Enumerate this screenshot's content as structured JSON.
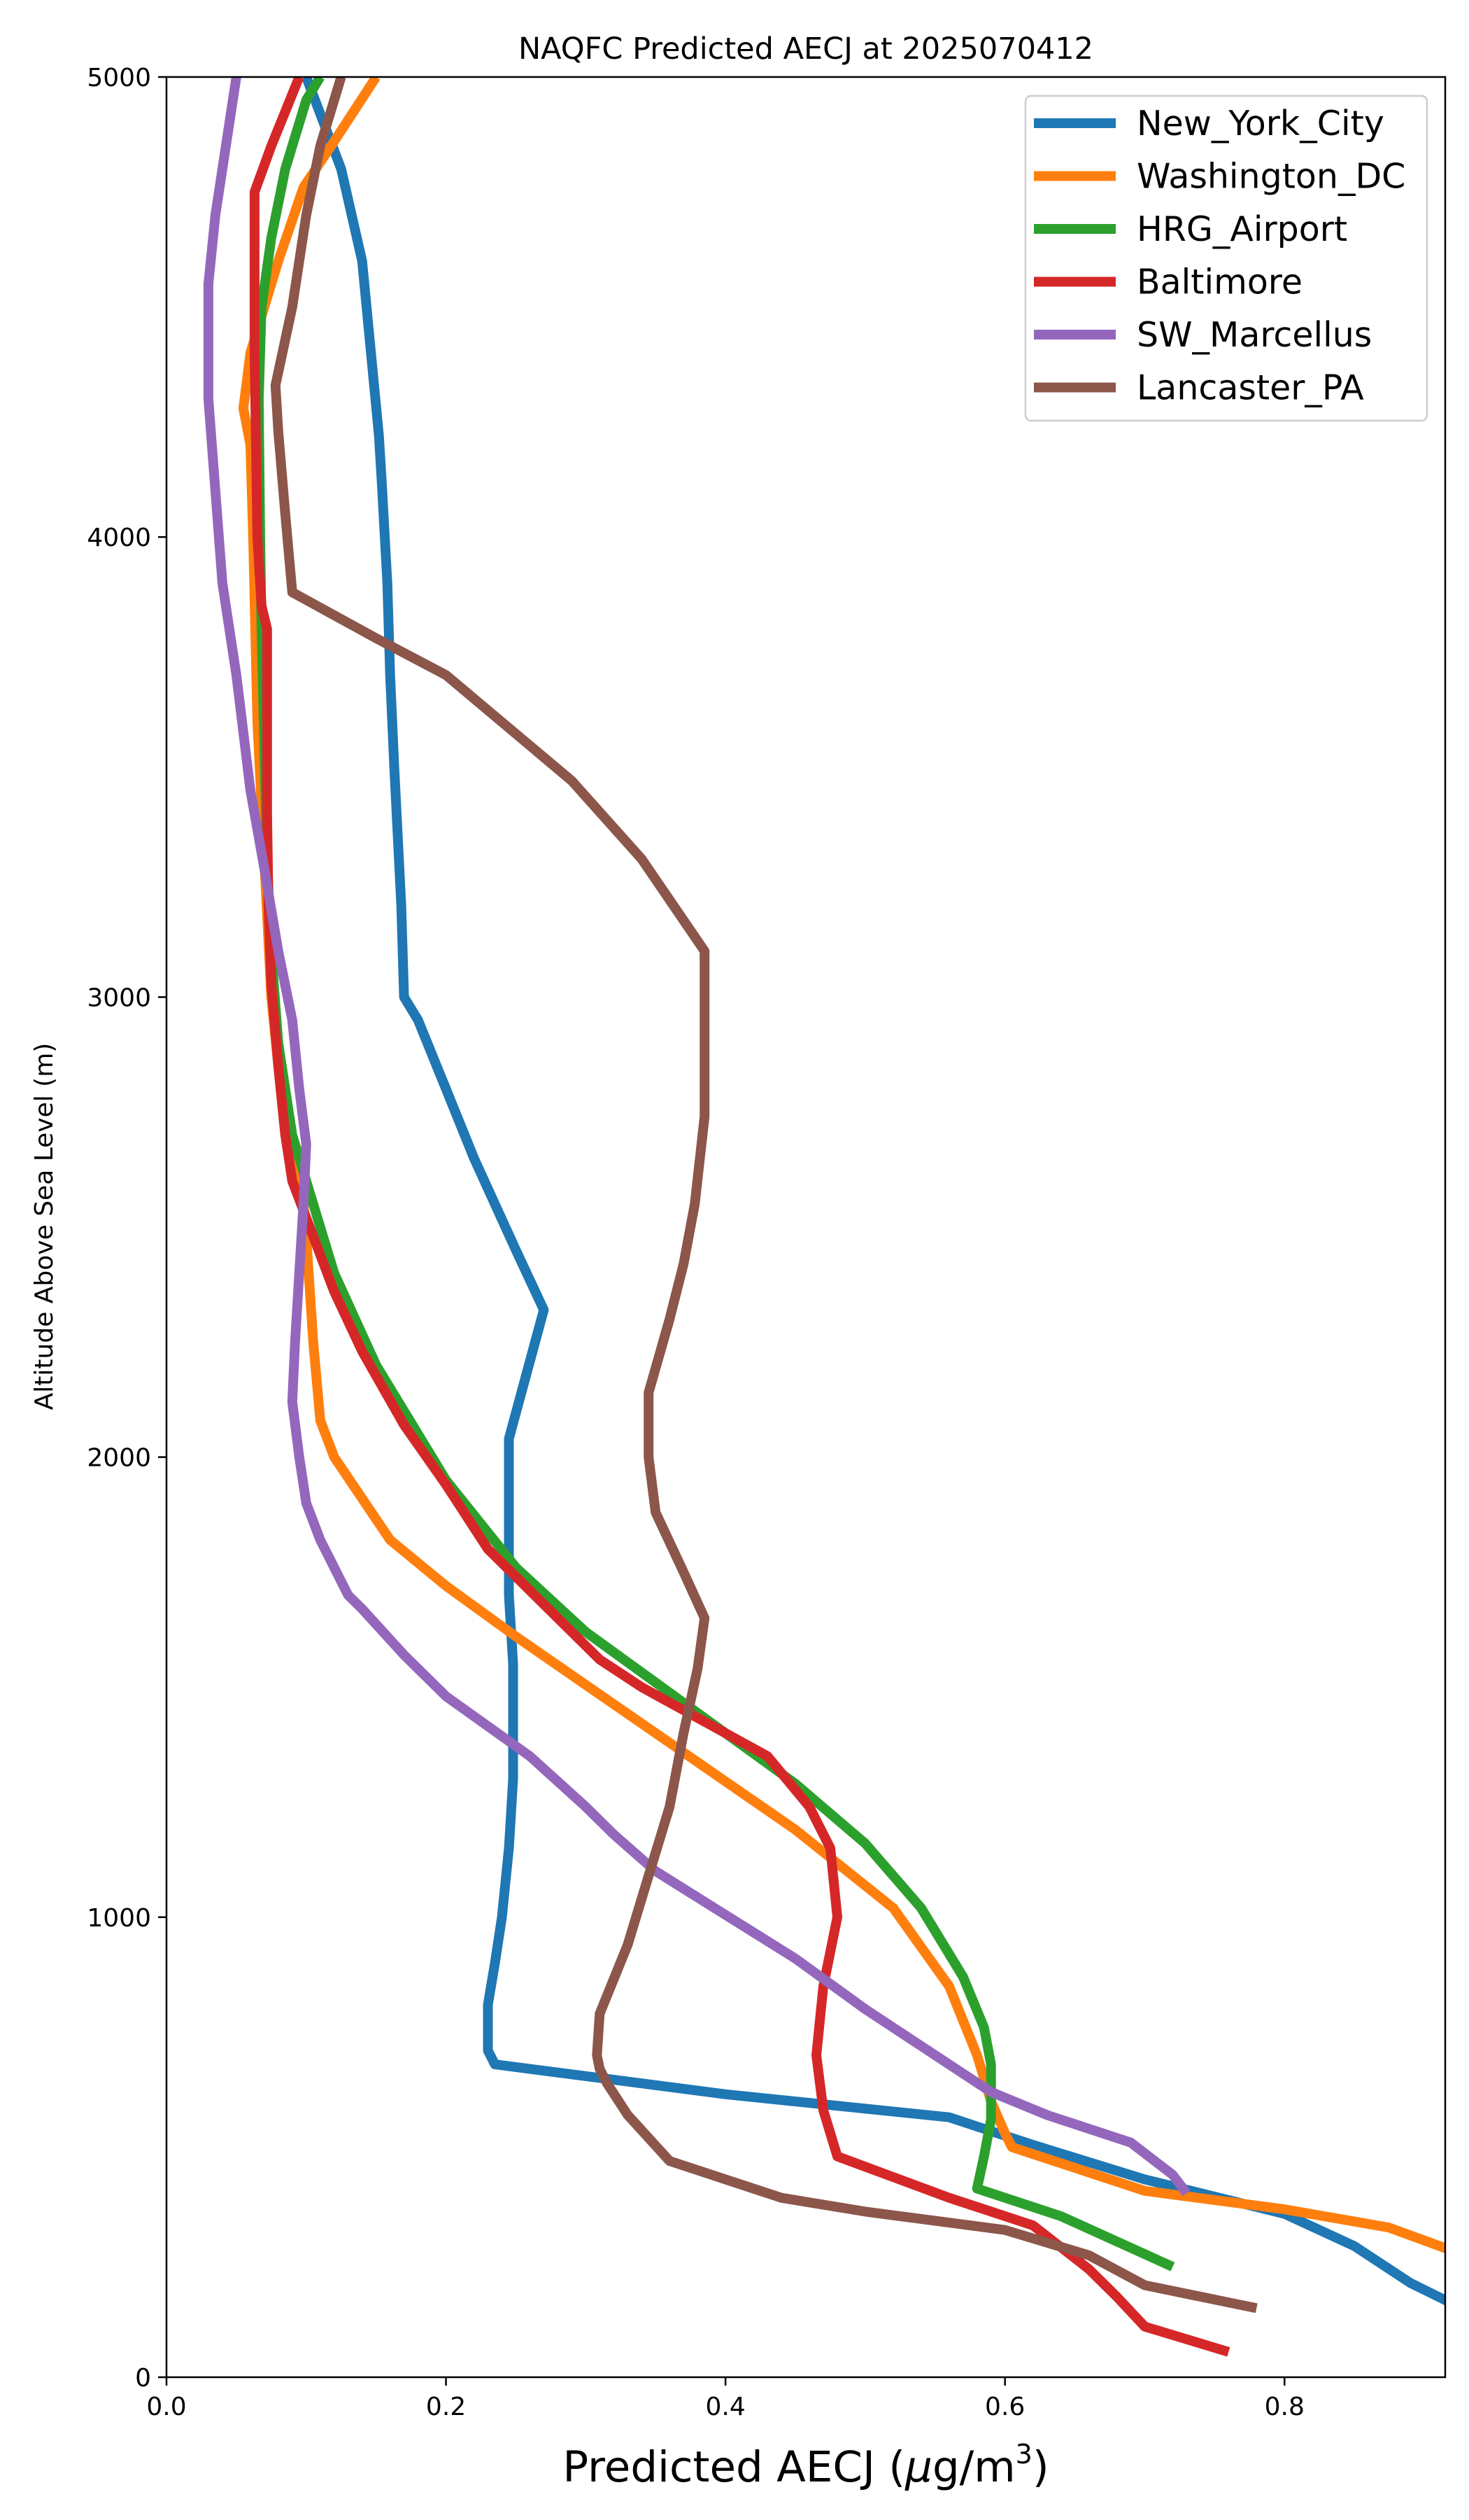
{
  "chart_data": {
    "type": "line",
    "title": "NAQFC Predicted AECJ at 2025070412",
    "xlabel_main": "Predicted AECJ (",
    "xlabel_mu": "μ",
    "xlabel_unit": "g/m",
    "xlabel_sup": "3",
    "xlabel_close": ")",
    "ylabel": "Altitude Above Sea Level (m)",
    "xlim": [
      0.0,
      0.915
    ],
    "ylim": [
      0,
      5000
    ],
    "xticks": [
      0.0,
      0.2,
      0.4,
      0.6,
      0.8
    ],
    "xtick_labels": [
      "0.0",
      "0.2",
      "0.4",
      "0.6",
      "0.8"
    ],
    "yticks": [
      0,
      1000,
      2000,
      3000,
      4000,
      5000
    ],
    "ytick_labels": [
      "0",
      "1000",
      "2000",
      "3000",
      "4000",
      "5000"
    ],
    "grid": false,
    "legend_position": "upper right",
    "series": [
      {
        "name": "New_York_City",
        "color": "#1f77b4",
        "points": [
          [
            0.92,
            160
          ],
          [
            0.89,
            205
          ],
          [
            0.85,
            285
          ],
          [
            0.8,
            355
          ],
          [
            0.7,
            430
          ],
          [
            0.62,
            505
          ],
          [
            0.6,
            525
          ],
          [
            0.56,
            565
          ],
          [
            0.4,
            615
          ],
          [
            0.235,
            680
          ],
          [
            0.23,
            710
          ],
          [
            0.23,
            810
          ],
          [
            0.235,
            900
          ],
          [
            0.24,
            1000
          ],
          [
            0.245,
            1150
          ],
          [
            0.248,
            1300
          ],
          [
            0.248,
            1550
          ],
          [
            0.245,
            1700
          ],
          [
            0.245,
            2040
          ],
          [
            0.27,
            2320
          ],
          [
            0.25,
            2450
          ],
          [
            0.22,
            2650
          ],
          [
            0.2,
            2800
          ],
          [
            0.18,
            2950
          ],
          [
            0.17,
            3000
          ],
          [
            0.168,
            3200
          ],
          [
            0.163,
            3500
          ],
          [
            0.16,
            3700
          ],
          [
            0.158,
            3900
          ],
          [
            0.154,
            4120
          ],
          [
            0.152,
            4220
          ],
          [
            0.14,
            4600
          ],
          [
            0.125,
            4800
          ],
          [
            0.1,
            5000
          ]
        ]
      },
      {
        "name": "Washington_DC",
        "color": "#ff7f0e",
        "points": [
          [
            0.92,
            275
          ],
          [
            0.875,
            325
          ],
          [
            0.8,
            365
          ],
          [
            0.7,
            405
          ],
          [
            0.605,
            500
          ],
          [
            0.6,
            530
          ],
          [
            0.59,
            600
          ],
          [
            0.58,
            700
          ],
          [
            0.56,
            850
          ],
          [
            0.52,
            1020
          ],
          [
            0.45,
            1190
          ],
          [
            0.35,
            1400
          ],
          [
            0.25,
            1610
          ],
          [
            0.2,
            1720
          ],
          [
            0.16,
            1820
          ],
          [
            0.12,
            2000
          ],
          [
            0.11,
            2080
          ],
          [
            0.105,
            2250
          ],
          [
            0.1,
            2480
          ],
          [
            0.098,
            2550
          ],
          [
            0.085,
            2700
          ],
          [
            0.075,
            3000
          ],
          [
            0.07,
            3300
          ],
          [
            0.065,
            3600
          ],
          [
            0.062,
            4000
          ],
          [
            0.06,
            4200
          ],
          [
            0.055,
            4280
          ],
          [
            0.06,
            4400
          ],
          [
            0.08,
            4600
          ],
          [
            0.098,
            4760
          ],
          [
            0.12,
            4860
          ],
          [
            0.15,
            5000
          ]
        ]
      },
      {
        "name": "HRG_Airport",
        "color": "#2ca02c",
        "points": [
          [
            0.72,
            240
          ],
          [
            0.68,
            295
          ],
          [
            0.64,
            350
          ],
          [
            0.59,
            400
          ],
          [
            0.58,
            410
          ],
          [
            0.585,
            480
          ],
          [
            0.59,
            560
          ],
          [
            0.59,
            630
          ],
          [
            0.59,
            680
          ],
          [
            0.585,
            760
          ],
          [
            0.57,
            870
          ],
          [
            0.54,
            1020
          ],
          [
            0.5,
            1160
          ],
          [
            0.45,
            1290
          ],
          [
            0.4,
            1400
          ],
          [
            0.35,
            1510
          ],
          [
            0.3,
            1620
          ],
          [
            0.25,
            1760
          ],
          [
            0.2,
            1950
          ],
          [
            0.15,
            2200
          ],
          [
            0.12,
            2400
          ],
          [
            0.1,
            2600
          ],
          [
            0.09,
            2700
          ],
          [
            0.08,
            2900
          ],
          [
            0.075,
            3100
          ],
          [
            0.072,
            3300
          ],
          [
            0.07,
            3550
          ],
          [
            0.068,
            3800
          ],
          [
            0.067,
            4000
          ],
          [
            0.066,
            4300
          ],
          [
            0.068,
            4500
          ],
          [
            0.075,
            4650
          ],
          [
            0.085,
            4800
          ],
          [
            0.1,
            4950
          ],
          [
            0.11,
            5000
          ]
        ]
      },
      {
        "name": "Baltimore",
        "color": "#d62728",
        "points": [
          [
            0.76,
            55
          ],
          [
            0.7,
            110
          ],
          [
            0.68,
            175
          ],
          [
            0.66,
            235
          ],
          [
            0.62,
            330
          ],
          [
            0.56,
            390
          ],
          [
            0.48,
            480
          ],
          [
            0.47,
            580
          ],
          [
            0.465,
            700
          ],
          [
            0.47,
            850
          ],
          [
            0.48,
            1000
          ],
          [
            0.475,
            1150
          ],
          [
            0.46,
            1240
          ],
          [
            0.43,
            1350
          ],
          [
            0.37,
            1450
          ],
          [
            0.34,
            1500
          ],
          [
            0.31,
            1560
          ],
          [
            0.28,
            1650
          ],
          [
            0.23,
            1800
          ],
          [
            0.2,
            1940
          ],
          [
            0.17,
            2070
          ],
          [
            0.14,
            2230
          ],
          [
            0.12,
            2360
          ],
          [
            0.1,
            2520
          ],
          [
            0.09,
            2600
          ],
          [
            0.085,
            2700
          ],
          [
            0.08,
            2850
          ],
          [
            0.075,
            3030
          ],
          [
            0.073,
            3200
          ],
          [
            0.072,
            3400
          ],
          [
            0.072,
            3600
          ],
          [
            0.072,
            3800
          ],
          [
            0.068,
            3850
          ],
          [
            0.065,
            4000
          ],
          [
            0.063,
            4400
          ],
          [
            0.063,
            4750
          ],
          [
            0.075,
            4850
          ],
          [
            0.095,
            5000
          ]
        ]
      },
      {
        "name": "SW_Marcellus",
        "color": "#9467bd",
        "points": [
          [
            0.73,
            400
          ],
          [
            0.72,
            440
          ],
          [
            0.69,
            510
          ],
          [
            0.63,
            570
          ],
          [
            0.59,
            620
          ],
          [
            0.54,
            720
          ],
          [
            0.5,
            800
          ],
          [
            0.45,
            910
          ],
          [
            0.35,
            1100
          ],
          [
            0.32,
            1180
          ],
          [
            0.3,
            1240
          ],
          [
            0.26,
            1350
          ],
          [
            0.2,
            1480
          ],
          [
            0.17,
            1570
          ],
          [
            0.14,
            1670
          ],
          [
            0.13,
            1700
          ],
          [
            0.11,
            1820
          ],
          [
            0.1,
            1900
          ],
          [
            0.095,
            2000
          ],
          [
            0.09,
            2120
          ],
          [
            0.092,
            2250
          ],
          [
            0.095,
            2400
          ],
          [
            0.098,
            2550
          ],
          [
            0.1,
            2680
          ],
          [
            0.095,
            2800
          ],
          [
            0.09,
            2950
          ],
          [
            0.08,
            3100
          ],
          [
            0.07,
            3280
          ],
          [
            0.06,
            3450
          ],
          [
            0.05,
            3700
          ],
          [
            0.04,
            3900
          ],
          [
            0.035,
            4100
          ],
          [
            0.03,
            4300
          ],
          [
            0.03,
            4400
          ],
          [
            0.03,
            4550
          ],
          [
            0.035,
            4700
          ],
          [
            0.045,
            4900
          ],
          [
            0.05,
            5000
          ]
        ]
      },
      {
        "name": "Lancaster_PA",
        "color": "#8c564b",
        "points": [
          [
            0.78,
            150
          ],
          [
            0.7,
            200
          ],
          [
            0.66,
            265
          ],
          [
            0.6,
            320
          ],
          [
            0.5,
            360
          ],
          [
            0.44,
            390
          ],
          [
            0.36,
            470
          ],
          [
            0.33,
            570
          ],
          [
            0.315,
            640
          ],
          [
            0.31,
            670
          ],
          [
            0.308,
            700
          ],
          [
            0.31,
            790
          ],
          [
            0.33,
            940
          ],
          [
            0.345,
            1090
          ],
          [
            0.36,
            1240
          ],
          [
            0.37,
            1400
          ],
          [
            0.38,
            1540
          ],
          [
            0.385,
            1650
          ],
          [
            0.37,
            1750
          ],
          [
            0.35,
            1880
          ],
          [
            0.345,
            2000
          ],
          [
            0.345,
            2140
          ],
          [
            0.36,
            2300
          ],
          [
            0.37,
            2420
          ],
          [
            0.378,
            2550
          ],
          [
            0.385,
            2740
          ],
          [
            0.385,
            3100
          ],
          [
            0.34,
            3300
          ],
          [
            0.29,
            3470
          ],
          [
            0.2,
            3700
          ],
          [
            0.15,
            3780
          ],
          [
            0.09,
            3880
          ],
          [
            0.085,
            4050
          ],
          [
            0.08,
            4230
          ],
          [
            0.078,
            4330
          ],
          [
            0.09,
            4500
          ],
          [
            0.1,
            4700
          ],
          [
            0.11,
            4850
          ],
          [
            0.125,
            5000
          ]
        ]
      }
    ]
  }
}
